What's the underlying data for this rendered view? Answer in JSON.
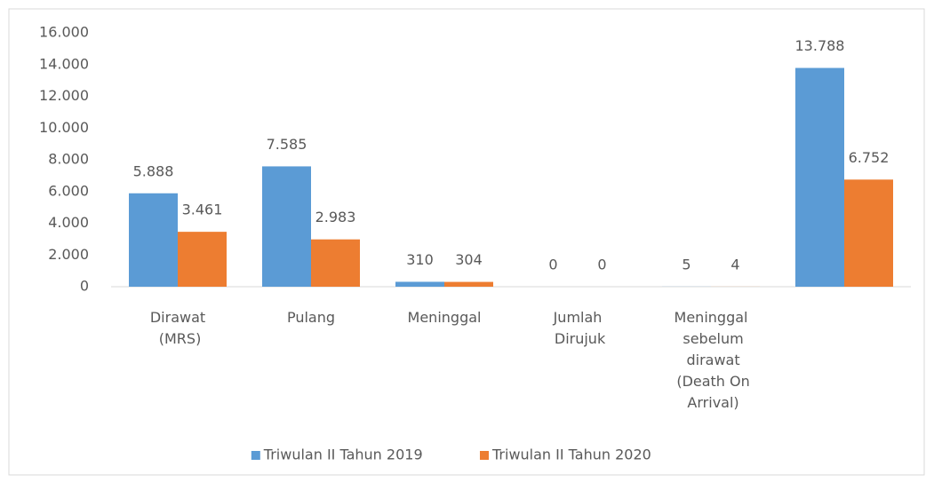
{
  "chart_data": {
    "type": "bar",
    "categories": [
      "Dirawat (MRS)",
      "Pulang",
      "Meninggal",
      "Jumlah Dirujuk",
      "Meninggal sebelum dirawat (Death On Arrival)",
      null
    ],
    "series": [
      {
        "name": "Triwulan II Tahun 2019",
        "color": "#5b9bd5",
        "values": [
          5888,
          7585,
          310,
          0,
          5,
          13788
        ],
        "value_labels": [
          "5.888",
          "7.585",
          "310",
          "0",
          "5",
          "13.788"
        ]
      },
      {
        "name": "Triwulan II Tahun 2020",
        "color": "#ed7d31",
        "values": [
          3461,
          2983,
          304,
          0,
          4,
          6752
        ],
        "value_labels": [
          "3.461",
          "2.983",
          "304",
          "0",
          "4",
          "6.752"
        ]
      }
    ],
    "ylim": [
      0,
      16000
    ],
    "yticks": [
      0,
      {
        "value": 2000,
        "label": "2.000"
      },
      {
        "value": 4000,
        "label": "4.000"
      },
      {
        "value": 6000,
        "label": "6.000"
      },
      {
        "value": 8000,
        "label": "8.000"
      },
      {
        "value": 10000,
        "label": "10.000"
      },
      {
        "value": 12000,
        "label": "12.000"
      },
      {
        "value": 14000,
        "label": "14.000"
      },
      {
        "value": 16000,
        "label": "16.000"
      }
    ],
    "grid": false,
    "legend": "bottom"
  }
}
